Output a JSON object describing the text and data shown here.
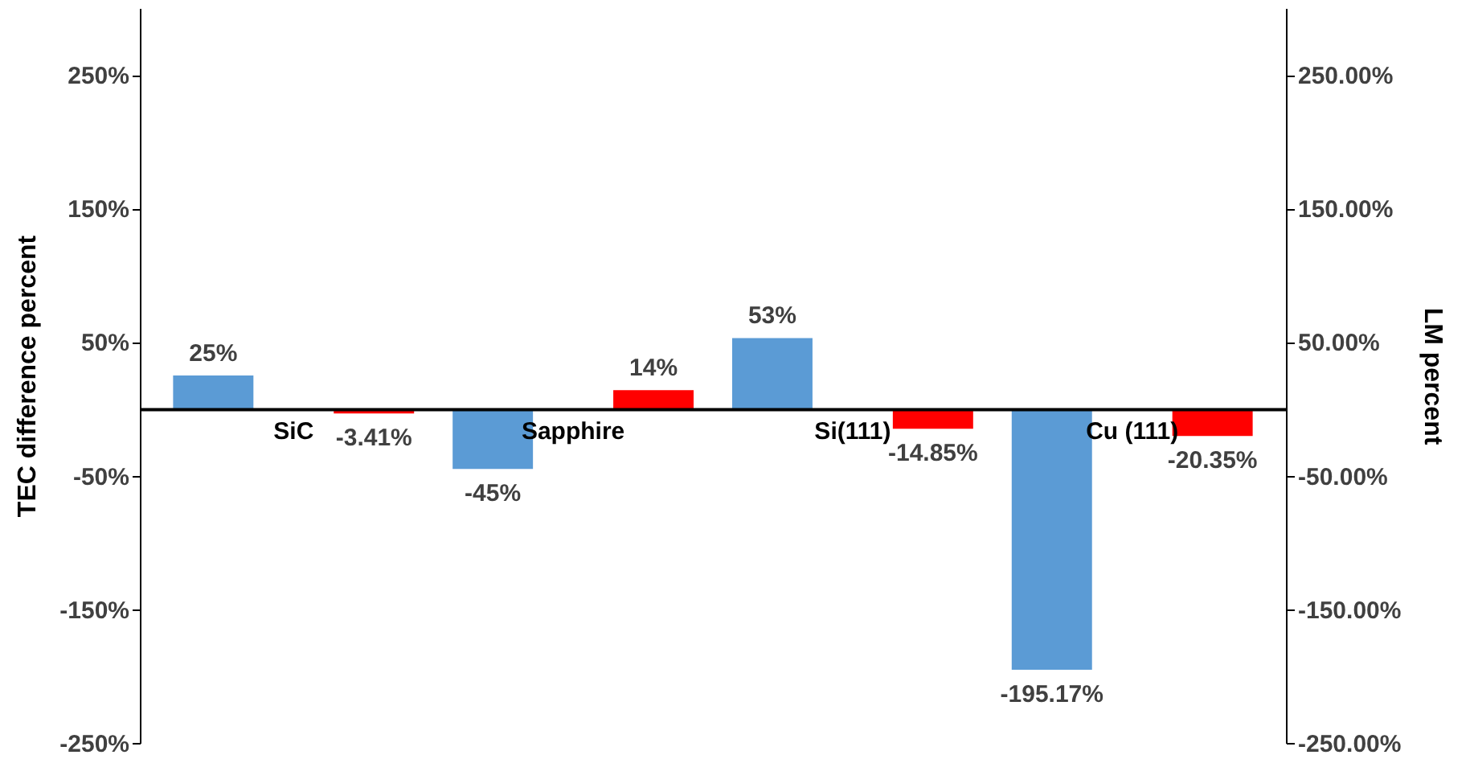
{
  "chart_data": {
    "type": "bar",
    "ylabel": "TEC difference percent",
    "y2label": "LM  percent",
    "categories": [
      "SiC",
      "Sapphire",
      "Si(111)",
      "Cu (111)"
    ],
    "series": [
      {
        "color": "#5b9bd5",
        "values": [
          25,
          -45,
          53,
          -195.17
        ],
        "value_labels": [
          "25%",
          "-45%",
          "53%",
          "-195.17%"
        ]
      },
      {
        "color": "#ff0000",
        "axis": "y2",
        "values": [
          -3.41,
          14,
          -14.85,
          -20.35
        ],
        "value_labels": [
          "-3.41%",
          "14%",
          "-14.85%",
          "-20.35%"
        ]
      }
    ],
    "ylim": [
      -250,
      300
    ],
    "yticks": [
      {
        "value": -250,
        "label": "-250%"
      },
      {
        "value": -150,
        "label": "-150%"
      },
      {
        "value": -50,
        "label": "-50%"
      },
      {
        "value": 50,
        "label": "50%"
      },
      {
        "value": 150,
        "label": "150%"
      },
      {
        "value": 250,
        "label": "250%"
      }
    ],
    "y2lim": [
      -250,
      300
    ],
    "y2ticks": [
      {
        "value": -250,
        "label": "-250.00%"
      },
      {
        "value": -150,
        "label": "-150.00%"
      },
      {
        "value": -50,
        "label": "-50.00%"
      },
      {
        "value": 50,
        "label": "50.00%"
      },
      {
        "value": 150,
        "label": "150.00%"
      },
      {
        "value": 250,
        "label": "250.00%"
      }
    ]
  }
}
